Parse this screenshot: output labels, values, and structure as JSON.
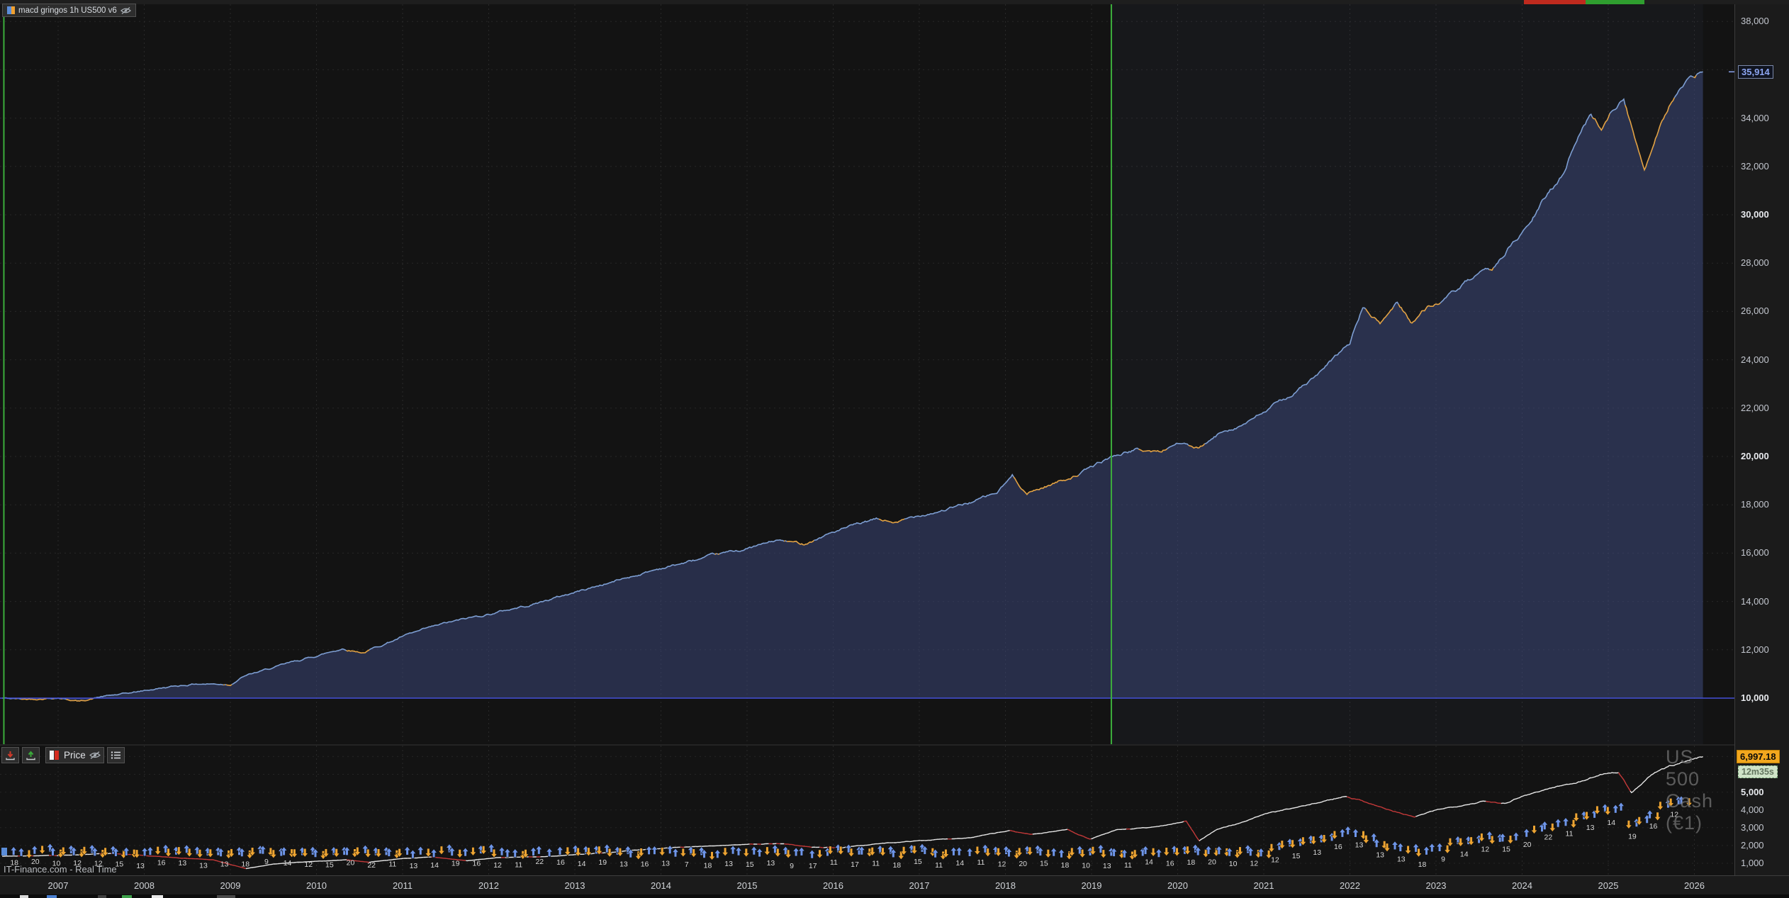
{
  "app": {
    "strategy_tag": {
      "label": "macd gringos 1h US500 v6",
      "icon_left_color": "#5b8dd9",
      "icon_right_color": "#f0a030"
    },
    "top_tabs": {
      "red_color": "#bf2a1e",
      "green_color": "#2f9e2f"
    },
    "price_panel_header": {
      "label": "Price"
    },
    "watermark": "US 500 Cash (€1)",
    "source_label": "IT-Finance.com - Real Time",
    "equity_badge": "35,914",
    "last_price_badge": "6,997.18",
    "timer_badge": "12m35s"
  },
  "axes": {
    "equity_ticks": [
      38000,
      34000,
      32000,
      30000,
      28000,
      26000,
      24000,
      22000,
      20000,
      18000,
      16000,
      14000,
      12000,
      10000
    ],
    "equity_bold_ticks": [
      30000,
      20000,
      10000
    ],
    "price_ticks": [
      5000,
      4000,
      3000,
      2000,
      1000
    ],
    "price_bold_ticks": [
      5000
    ],
    "years": [
      2007,
      2008,
      2009,
      2010,
      2011,
      2012,
      2013,
      2014,
      2015,
      2016,
      2017,
      2018,
      2019,
      2020,
      2021,
      2022,
      2023,
      2024,
      2025,
      2026
    ]
  },
  "colors": {
    "equity_line_up": "#7d9ed2",
    "equity_line_drawdown": "#e2a244",
    "equity_fill": "rgba(62,74,128,0.50)",
    "baseline_line": "#4450d8",
    "green_vline": "#3cae3c",
    "price_up": "#e8e8e8",
    "price_down": "#c43939",
    "marker_up": "#6e95e8",
    "marker_down": "#eda432",
    "grid": "#2d2d2d"
  },
  "chart_data": [
    {
      "type": "area",
      "name": "strategy-equity-curve",
      "title": "macd gringos 1h US500 v6",
      "x_unit": "year",
      "x_range": [
        2006.33,
        2026.47
      ],
      "ylim": [
        9000,
        38600
      ],
      "baseline": 10000,
      "last_value": 35914,
      "green_marker_years": [
        2006.37,
        2019.23
      ],
      "points": [
        [
          2006.35,
          10000
        ],
        [
          2006.6,
          9950
        ],
        [
          2007.0,
          10030
        ],
        [
          2007.25,
          9870
        ],
        [
          2007.5,
          10060
        ],
        [
          2007.8,
          10180
        ],
        [
          2008.2,
          10420
        ],
        [
          2008.6,
          10600
        ],
        [
          2009.0,
          10580
        ],
        [
          2009.15,
          10900
        ],
        [
          2009.6,
          11350
        ],
        [
          2010.0,
          11750
        ],
        [
          2010.3,
          12050
        ],
        [
          2010.55,
          11900
        ],
        [
          2011.0,
          12550
        ],
        [
          2011.5,
          13080
        ],
        [
          2012.0,
          13480
        ],
        [
          2012.5,
          13880
        ],
        [
          2013.0,
          14380
        ],
        [
          2013.5,
          14880
        ],
        [
          2014.0,
          15380
        ],
        [
          2014.5,
          15780
        ],
        [
          2015.0,
          16180
        ],
        [
          2015.35,
          16520
        ],
        [
          2015.65,
          16380
        ],
        [
          2016.0,
          16880
        ],
        [
          2016.5,
          17380
        ],
        [
          2016.75,
          17250
        ],
        [
          2017.0,
          17580
        ],
        [
          2017.5,
          17980
        ],
        [
          2017.9,
          18480
        ],
        [
          2018.08,
          19180
        ],
        [
          2018.25,
          18480
        ],
        [
          2018.55,
          18880
        ],
        [
          2018.85,
          19280
        ],
        [
          2019.0,
          19550
        ],
        [
          2019.23,
          19980
        ],
        [
          2019.5,
          20280
        ],
        [
          2019.8,
          20180
        ],
        [
          2020.0,
          20580
        ],
        [
          2020.25,
          20280
        ],
        [
          2020.55,
          21080
        ],
        [
          2020.85,
          21480
        ],
        [
          2021.1,
          22050
        ],
        [
          2021.4,
          22750
        ],
        [
          2021.7,
          23580
        ],
        [
          2022.0,
          24680
        ],
        [
          2022.15,
          26180
        ],
        [
          2022.35,
          25480
        ],
        [
          2022.55,
          26380
        ],
        [
          2022.72,
          25580
        ],
        [
          2022.9,
          26180
        ],
        [
          2023.1,
          26480
        ],
        [
          2023.4,
          27280
        ],
        [
          2023.65,
          27680
        ],
        [
          2023.85,
          28680
        ],
        [
          2024.05,
          29380
        ],
        [
          2024.25,
          30580
        ],
        [
          2024.45,
          31580
        ],
        [
          2024.65,
          33280
        ],
        [
          2024.8,
          34180
        ],
        [
          2024.92,
          33580
        ],
        [
          2025.05,
          34480
        ],
        [
          2025.18,
          34780
        ],
        [
          2025.32,
          32980
        ],
        [
          2025.42,
          31900
        ],
        [
          2025.58,
          33580
        ],
        [
          2025.72,
          34680
        ],
        [
          2025.88,
          35380
        ],
        [
          2026.1,
          35914
        ]
      ]
    },
    {
      "type": "line",
      "name": "us500-price",
      "title": "US 500 Cash (€1)",
      "x_unit": "year",
      "x_range": [
        2006.33,
        2026.47
      ],
      "ylim": [
        300,
        7600
      ],
      "last_value": 6997.18,
      "points": [
        [
          2006.35,
          1400
        ],
        [
          2007.0,
          1440
        ],
        [
          2007.6,
          1540
        ],
        [
          2007.85,
          1490
        ],
        [
          2008.1,
          1390
        ],
        [
          2008.5,
          1280
        ],
        [
          2008.8,
          1190
        ],
        [
          2009.0,
          930
        ],
        [
          2009.18,
          700
        ],
        [
          2009.5,
          950
        ],
        [
          2009.8,
          1060
        ],
        [
          2010.1,
          1130
        ],
        [
          2010.35,
          1200
        ],
        [
          2010.6,
          1060
        ],
        [
          2011.0,
          1270
        ],
        [
          2011.35,
          1350
        ],
        [
          2011.75,
          1140
        ],
        [
          2012.1,
          1320
        ],
        [
          2012.6,
          1360
        ],
        [
          2013.0,
          1480
        ],
        [
          2013.5,
          1650
        ],
        [
          2014.0,
          1840
        ],
        [
          2014.6,
          1970
        ],
        [
          2015.0,
          2070
        ],
        [
          2015.4,
          2110
        ],
        [
          2015.75,
          1900
        ],
        [
          2016.1,
          1870
        ],
        [
          2016.5,
          2090
        ],
        [
          2017.0,
          2270
        ],
        [
          2017.6,
          2450
        ],
        [
          2018.05,
          2830
        ],
        [
          2018.3,
          2620
        ],
        [
          2018.72,
          2900
        ],
        [
          2018.98,
          2350
        ],
        [
          2019.3,
          2880
        ],
        [
          2019.7,
          3010
        ],
        [
          2020.1,
          3370
        ],
        [
          2020.25,
          2240
        ],
        [
          2020.45,
          2900
        ],
        [
          2020.7,
          3220
        ],
        [
          2021.0,
          3760
        ],
        [
          2021.5,
          4250
        ],
        [
          2021.95,
          4780
        ],
        [
          2022.2,
          4430
        ],
        [
          2022.5,
          3920
        ],
        [
          2022.75,
          3600
        ],
        [
          2023.05,
          4050
        ],
        [
          2023.55,
          4480
        ],
        [
          2023.8,
          4380
        ],
        [
          2024.0,
          4780
        ],
        [
          2024.35,
          5250
        ],
        [
          2024.7,
          5620
        ],
        [
          2024.95,
          6060
        ],
        [
          2025.12,
          6120
        ],
        [
          2025.27,
          4950
        ],
        [
          2025.5,
          5960
        ],
        [
          2025.72,
          6480
        ],
        [
          2025.88,
          6720
        ],
        [
          2026.1,
          6997.18
        ]
      ]
    },
    {
      "type": "markers",
      "name": "trade-markers",
      "description": "blue up-arrows and orange down-arrows with trade counts along the price series",
      "counts": [
        18,
        20,
        10,
        12,
        12,
        15,
        13,
        16,
        13,
        13,
        13,
        18,
        9,
        14,
        12,
        15,
        20,
        22,
        11,
        13,
        14,
        19,
        16,
        12,
        11,
        22,
        16,
        14,
        19,
        13,
        16,
        13,
        7,
        18,
        13,
        15,
        13,
        9,
        17,
        11,
        17,
        11,
        18,
        15,
        11,
        14,
        11,
        12,
        20,
        15,
        18,
        10,
        13,
        11,
        14,
        16
      ]
    }
  ]
}
